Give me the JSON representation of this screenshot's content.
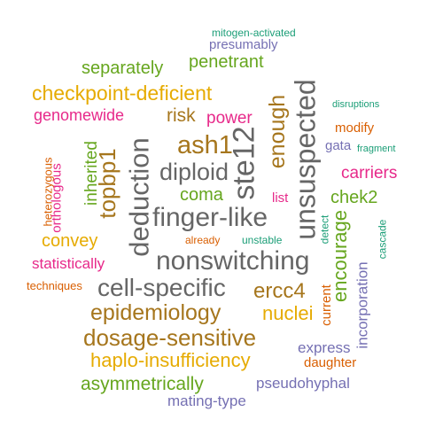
{
  "words": [
    {
      "text": "mitogen-activated",
      "color": "#1b9e77"
    },
    {
      "text": "presumably",
      "color": "#7570b3"
    },
    {
      "text": "separately",
      "color": "#66a61e"
    },
    {
      "text": "penetrant",
      "color": "#66a61e"
    },
    {
      "text": "checkpoint-deficient",
      "color": "#e6ab02"
    },
    {
      "text": "disruptions",
      "color": "#1b9e77"
    },
    {
      "text": "genomewide",
      "color": "#e7298a"
    },
    {
      "text": "risk",
      "color": "#a6761d"
    },
    {
      "text": "power",
      "color": "#e7298a"
    },
    {
      "text": "modify",
      "color": "#d95f02"
    },
    {
      "text": "ash1",
      "color": "#a6761d"
    },
    {
      "text": "gata",
      "color": "#7570b3"
    },
    {
      "text": "fragment",
      "color": "#1b9e77"
    },
    {
      "text": "diploid",
      "color": "#666666"
    },
    {
      "text": "carriers",
      "color": "#e7298a"
    },
    {
      "text": "coma",
      "color": "#66a61e"
    },
    {
      "text": "list",
      "color": "#e7298a"
    },
    {
      "text": "chek2",
      "color": "#66a61e"
    },
    {
      "text": "finger-like",
      "color": "#666666"
    },
    {
      "text": "convey",
      "color": "#e6ab02"
    },
    {
      "text": "already",
      "color": "#d95f02"
    },
    {
      "text": "unstable",
      "color": "#1b9e77"
    },
    {
      "text": "statistically",
      "color": "#e7298a"
    },
    {
      "text": "nonswitching",
      "color": "#666666"
    },
    {
      "text": "techniques",
      "color": "#d95f02"
    },
    {
      "text": "cell-specific",
      "color": "#666666"
    },
    {
      "text": "ercc4",
      "color": "#a6761d"
    },
    {
      "text": "epidemiology",
      "color": "#a6761d"
    },
    {
      "text": "nuclei",
      "color": "#e6ab02"
    },
    {
      "text": "dosage-sensitive",
      "color": "#a6761d"
    },
    {
      "text": "express",
      "color": "#7570b3"
    },
    {
      "text": "haplo-insufficiency",
      "color": "#e6ab02"
    },
    {
      "text": "daughter",
      "color": "#d95f02"
    },
    {
      "text": "asymmetrically",
      "color": "#66a61e"
    },
    {
      "text": "pseudohyphal",
      "color": "#7570b3"
    },
    {
      "text": "mating-type",
      "color": "#7570b3"
    },
    {
      "text": "deduction",
      "color": "#666666"
    },
    {
      "text": "ste12",
      "color": "#666666"
    },
    {
      "text": "unsuspected",
      "color": "#666666"
    },
    {
      "text": "enough",
      "color": "#a6761d"
    },
    {
      "text": "topbp1",
      "color": "#a6761d"
    },
    {
      "text": "inherited",
      "color": "#66a61e"
    },
    {
      "text": "heterozygous",
      "color": "#d95f02"
    },
    {
      "text": "orthologous",
      "color": "#e7298a"
    },
    {
      "text": "encourage",
      "color": "#66a61e"
    },
    {
      "text": "detect",
      "color": "#1b9e77"
    },
    {
      "text": "cascade",
      "color": "#1b9e77"
    },
    {
      "text": "incorporation",
      "color": "#7570b3"
    },
    {
      "text": "current",
      "color": "#d95f02"
    }
  ]
}
